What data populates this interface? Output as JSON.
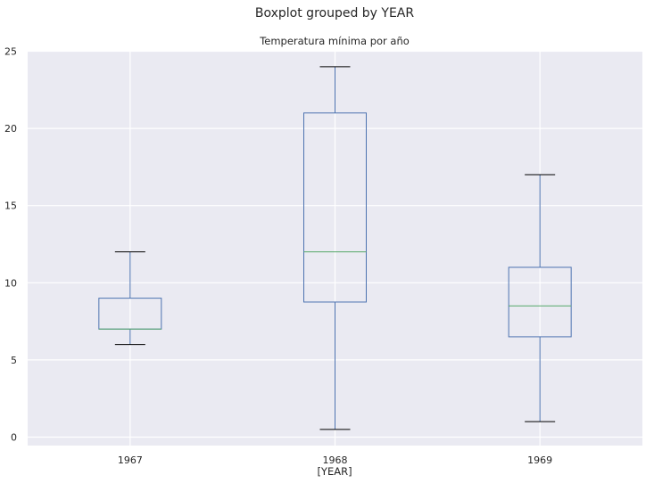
{
  "chart_data": {
    "type": "boxplot",
    "suptitle": "Boxplot grouped by YEAR",
    "title": "Temperatura mínima por año",
    "xlabel": "[YEAR]",
    "ylabel": "",
    "categories": [
      "1967",
      "1968",
      "1969"
    ],
    "ylim": [
      -0.5,
      25
    ],
    "yticks": [
      0,
      5,
      10,
      15,
      20,
      25
    ],
    "grid": true,
    "boxes": [
      {
        "label": "1967",
        "whisker_low": 6,
        "q1": 7,
        "median": 7,
        "q3": 9,
        "whisker_high": 12
      },
      {
        "label": "1968",
        "whisker_low": 0.5,
        "q1": 8.75,
        "median": 12,
        "q3": 21,
        "whisker_high": 24
      },
      {
        "label": "1969",
        "whisker_low": 1,
        "q1": 6.5,
        "median": 8.5,
        "q3": 11,
        "whisker_high": 17
      }
    ],
    "colors": {
      "background": "#eaeaf2",
      "grid": "#ffffff",
      "box": "#4c72b0",
      "median": "#55a868",
      "cap": "#000000",
      "text": "#262626"
    }
  }
}
